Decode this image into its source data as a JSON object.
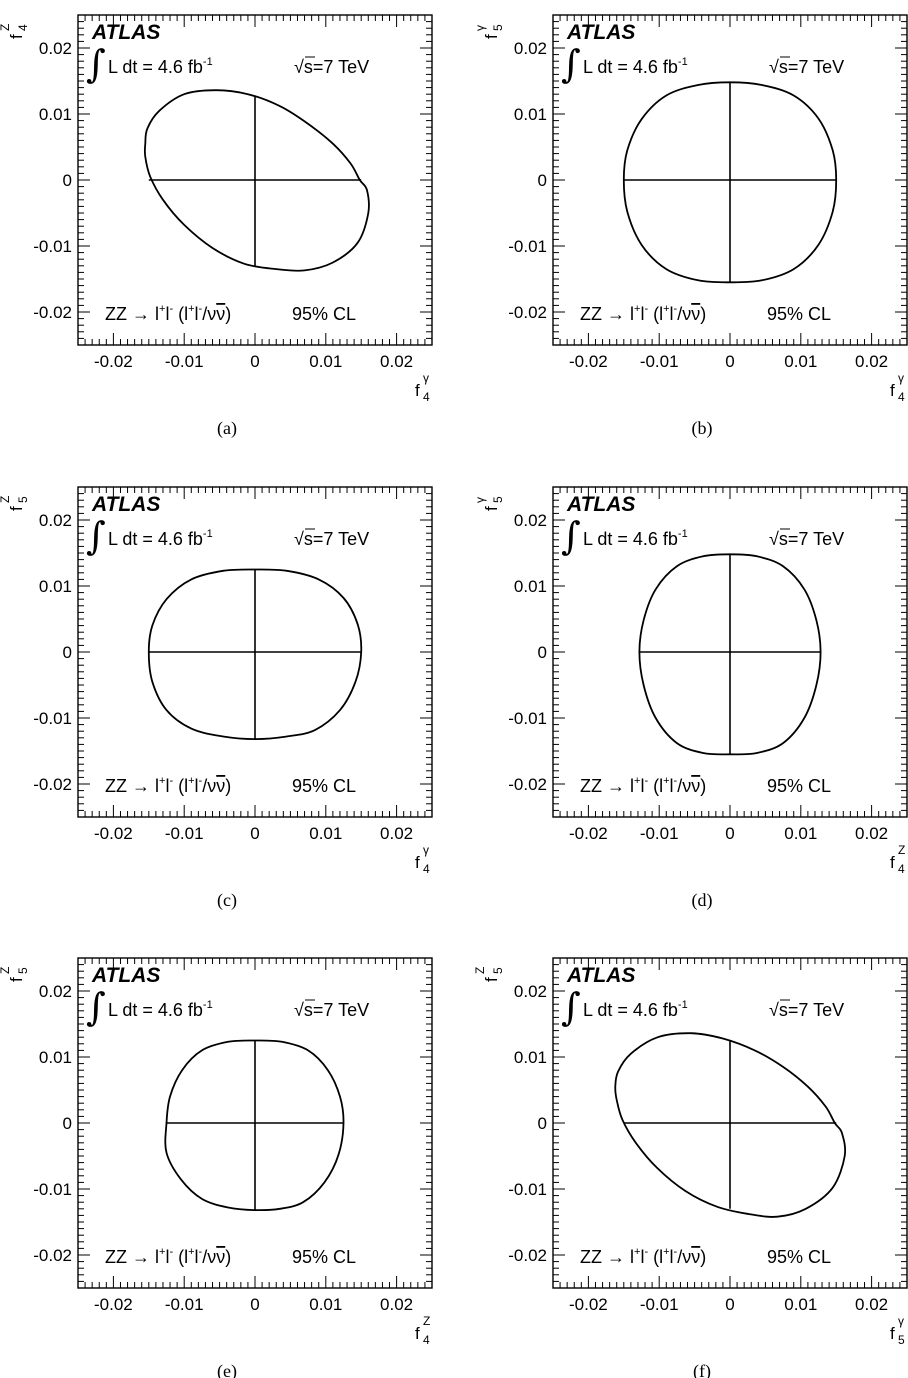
{
  "atlas_label": "ATLAS",
  "luminosity_text": "L dt = 4.6 fb",
  "luminosity_exponent": "-1",
  "energy_text": "s=7 TeV",
  "process_label": {
    "prefix": "ZZ → l",
    "p1_sup": "+",
    "p2": "l",
    "p2_sup": "-",
    "paren_open": " (l",
    "p3_sup": "+",
    "p4": "l",
    "p4_sup": "-",
    "slash": "/ν",
    "nubar": "ν",
    "paren_close": ")",
    "cl": "95% CL"
  },
  "x_tick_labels": [
    "-0.02",
    "-0.01",
    "0",
    "0.01",
    "0.02"
  ],
  "y_tick_labels": [
    "0.02",
    "0.01",
    "0",
    "-0.01",
    "-0.02"
  ],
  "chart_data": [
    {
      "type": "contour",
      "caption": "(a)",
      "xlabel": "f4γ",
      "ylabel": "f4Z",
      "x_axis_symbol": {
        "base": "f",
        "sub": "4",
        "sup": "γ"
      },
      "y_axis_symbol": {
        "base": "f",
        "sub": "4",
        "sup": "Z"
      },
      "xlim": [
        -0.025,
        0.025
      ],
      "ylim": [
        -0.025,
        0.025
      ],
      "confidence_level": "95% CL",
      "limits_x": [
        -0.015,
        0.015
      ],
      "limits_y": [
        -0.013,
        0.0128
      ],
      "contour": [
        [
          -0.0155,
          0.0055
        ],
        [
          -0.0155,
          0.0035
        ],
        [
          -0.0148,
          0.0005
        ],
        [
          -0.013,
          -0.003
        ],
        [
          -0.01,
          -0.0068
        ],
        [
          -0.006,
          -0.0103
        ],
        [
          -0.0015,
          -0.0127
        ],
        [
          0.003,
          -0.0135
        ],
        [
          0.007,
          -0.0137
        ],
        [
          0.011,
          -0.0125
        ],
        [
          0.0145,
          -0.0095
        ],
        [
          0.016,
          -0.005
        ],
        [
          0.0158,
          -0.0015
        ],
        [
          0.0148,
          0.0
        ],
        [
          0.0135,
          0.0025
        ],
        [
          0.011,
          0.0055
        ],
        [
          0.0075,
          0.0085
        ],
        [
          0.0035,
          0.0112
        ],
        [
          -0.001,
          0.013
        ],
        [
          -0.0055,
          0.0136
        ],
        [
          -0.01,
          0.013
        ],
        [
          -0.0135,
          0.0105
        ],
        [
          -0.0152,
          0.0078
        ]
      ]
    },
    {
      "type": "contour",
      "caption": "(b)",
      "xlabel": "f4γ",
      "ylabel": "f5γ",
      "x_axis_symbol": {
        "base": "f",
        "sub": "4",
        "sup": "γ"
      },
      "y_axis_symbol": {
        "base": "f",
        "sub": "5",
        "sup": "γ"
      },
      "xlim": [
        -0.025,
        0.025
      ],
      "ylim": [
        -0.025,
        0.025
      ],
      "confidence_level": "95% CL",
      "limits_x": [
        -0.015,
        0.015
      ],
      "limits_y": [
        -0.0155,
        0.0148
      ],
      "contour": [
        [
          -0.015,
          0.0
        ],
        [
          -0.0145,
          0.0045
        ],
        [
          -0.0125,
          0.0092
        ],
        [
          -0.009,
          0.0128
        ],
        [
          -0.0045,
          0.0144
        ],
        [
          0.0,
          0.0148
        ],
        [
          0.0045,
          0.0144
        ],
        [
          0.009,
          0.0128
        ],
        [
          0.0125,
          0.0093
        ],
        [
          0.0145,
          0.0045
        ],
        [
          0.015,
          0.0
        ],
        [
          0.0145,
          -0.0048
        ],
        [
          0.0125,
          -0.0098
        ],
        [
          0.009,
          -0.0135
        ],
        [
          0.0045,
          -0.0152
        ],
        [
          0.0,
          -0.0155
        ],
        [
          -0.0045,
          -0.0152
        ],
        [
          -0.009,
          -0.0135
        ],
        [
          -0.0125,
          -0.0098
        ],
        [
          -0.0145,
          -0.0048
        ]
      ]
    },
    {
      "type": "contour",
      "caption": "(c)",
      "xlabel": "f4γ",
      "ylabel": "f5Z",
      "x_axis_symbol": {
        "base": "f",
        "sub": "4",
        "sup": "γ"
      },
      "y_axis_symbol": {
        "base": "f",
        "sub": "5",
        "sup": "Z"
      },
      "xlim": [
        -0.025,
        0.025
      ],
      "ylim": [
        -0.025,
        0.025
      ],
      "confidence_level": "95% CL",
      "limits_x": [
        -0.015,
        0.015
      ],
      "limits_y": [
        -0.0132,
        0.0125
      ],
      "contour": [
        [
          -0.015,
          0.0
        ],
        [
          -0.0145,
          0.004
        ],
        [
          -0.0125,
          0.008
        ],
        [
          -0.009,
          0.011
        ],
        [
          -0.0045,
          0.0123
        ],
        [
          0.0,
          0.0125
        ],
        [
          0.0045,
          0.0123
        ],
        [
          0.009,
          0.011
        ],
        [
          0.0125,
          0.0082
        ],
        [
          0.0145,
          0.0042
        ],
        [
          0.015,
          0.0
        ],
        [
          0.0142,
          -0.0045
        ],
        [
          0.012,
          -0.0088
        ],
        [
          0.0085,
          -0.0118
        ],
        [
          0.0045,
          -0.0128
        ],
        [
          0.0,
          -0.0132
        ],
        [
          -0.0045,
          -0.0128
        ],
        [
          -0.009,
          -0.0116
        ],
        [
          -0.0125,
          -0.0088
        ],
        [
          -0.0145,
          -0.0045
        ]
      ]
    },
    {
      "type": "contour",
      "caption": "(d)",
      "xlabel": "f4Z",
      "ylabel": "f5γ",
      "x_axis_symbol": {
        "base": "f",
        "sub": "4",
        "sup": "Z"
      },
      "y_axis_symbol": {
        "base": "f",
        "sub": "5",
        "sup": "γ"
      },
      "xlim": [
        -0.025,
        0.025
      ],
      "ylim": [
        -0.025,
        0.025
      ],
      "confidence_level": "95% CL",
      "limits_x": [
        -0.0128,
        0.0128
      ],
      "limits_y": [
        -0.0155,
        0.0148
      ],
      "contour": [
        [
          -0.0128,
          0.0
        ],
        [
          -0.0122,
          0.0048
        ],
        [
          -0.0105,
          0.0095
        ],
        [
          -0.0075,
          0.013
        ],
        [
          -0.0038,
          0.0145
        ],
        [
          0.0,
          0.0148
        ],
        [
          0.0038,
          0.0145
        ],
        [
          0.0075,
          0.013
        ],
        [
          0.0105,
          0.0095
        ],
        [
          0.0122,
          0.0048
        ],
        [
          0.0128,
          0.0
        ],
        [
          0.0122,
          -0.005
        ],
        [
          0.0105,
          -0.01
        ],
        [
          0.0075,
          -0.0138
        ],
        [
          0.0038,
          -0.0153
        ],
        [
          0.0,
          -0.0155
        ],
        [
          -0.0038,
          -0.0153
        ],
        [
          -0.0075,
          -0.0138
        ],
        [
          -0.0105,
          -0.01
        ],
        [
          -0.0122,
          -0.005
        ]
      ]
    },
    {
      "type": "contour",
      "caption": "(e)",
      "xlabel": "f4Z",
      "ylabel": "f5Z",
      "x_axis_symbol": {
        "base": "f",
        "sub": "4",
        "sup": "Z"
      },
      "y_axis_symbol": {
        "base": "f",
        "sub": "5",
        "sup": "Z"
      },
      "xlim": [
        -0.025,
        0.025
      ],
      "ylim": [
        -0.025,
        0.025
      ],
      "confidence_level": "95% CL",
      "limits_x": [
        -0.0125,
        0.0125
      ],
      "limits_y": [
        -0.0132,
        0.0125
      ],
      "contour": [
        [
          -0.0125,
          0.0
        ],
        [
          -0.012,
          0.004
        ],
        [
          -0.0103,
          0.008
        ],
        [
          -0.0075,
          0.011
        ],
        [
          -0.0038,
          0.0123
        ],
        [
          0.0,
          0.0125
        ],
        [
          0.0038,
          0.0123
        ],
        [
          0.0075,
          0.011
        ],
        [
          0.0103,
          0.008
        ],
        [
          0.012,
          0.004
        ],
        [
          0.0125,
          0.0
        ],
        [
          0.0118,
          -0.0048
        ],
        [
          0.0098,
          -0.009
        ],
        [
          0.0068,
          -0.012
        ],
        [
          0.0035,
          -0.013
        ],
        [
          0.0,
          -0.0132
        ],
        [
          -0.0038,
          -0.0128
        ],
        [
          -0.0075,
          -0.0115
        ],
        [
          -0.0105,
          -0.0085
        ],
        [
          -0.0125,
          -0.0045
        ]
      ]
    },
    {
      "type": "contour",
      "caption": "(f)",
      "xlabel": "f5γ",
      "ylabel": "f5Z",
      "x_axis_symbol": {
        "base": "f",
        "sub": "5",
        "sup": "γ"
      },
      "y_axis_symbol": {
        "base": "f",
        "sub": "5",
        "sup": "Z"
      },
      "xlim": [
        -0.025,
        0.025
      ],
      "ylim": [
        -0.025,
        0.025
      ],
      "confidence_level": "95% CL",
      "limits_x": [
        -0.015,
        0.015
      ],
      "limits_y": [
        -0.013,
        0.0125
      ],
      "contour": [
        [
          -0.0162,
          0.0055
        ],
        [
          -0.016,
          0.0035
        ],
        [
          -0.0152,
          0.0005
        ],
        [
          -0.0133,
          -0.003
        ],
        [
          -0.0103,
          -0.0068
        ],
        [
          -0.0063,
          -0.0103
        ],
        [
          -0.0018,
          -0.0127
        ],
        [
          0.0027,
          -0.0138
        ],
        [
          0.0067,
          -0.0142
        ],
        [
          0.0107,
          -0.013
        ],
        [
          0.0145,
          -0.0098
        ],
        [
          0.0162,
          -0.005
        ],
        [
          0.0158,
          -0.0015
        ],
        [
          0.0148,
          0.0
        ],
        [
          0.0135,
          0.0025
        ],
        [
          0.011,
          0.0055
        ],
        [
          0.0075,
          0.0085
        ],
        [
          0.0035,
          0.011
        ],
        [
          -0.001,
          0.0128
        ],
        [
          -0.0055,
          0.0136
        ],
        [
          -0.0102,
          0.013
        ],
        [
          -0.014,
          0.0105
        ],
        [
          -0.0158,
          0.0078
        ]
      ]
    }
  ]
}
